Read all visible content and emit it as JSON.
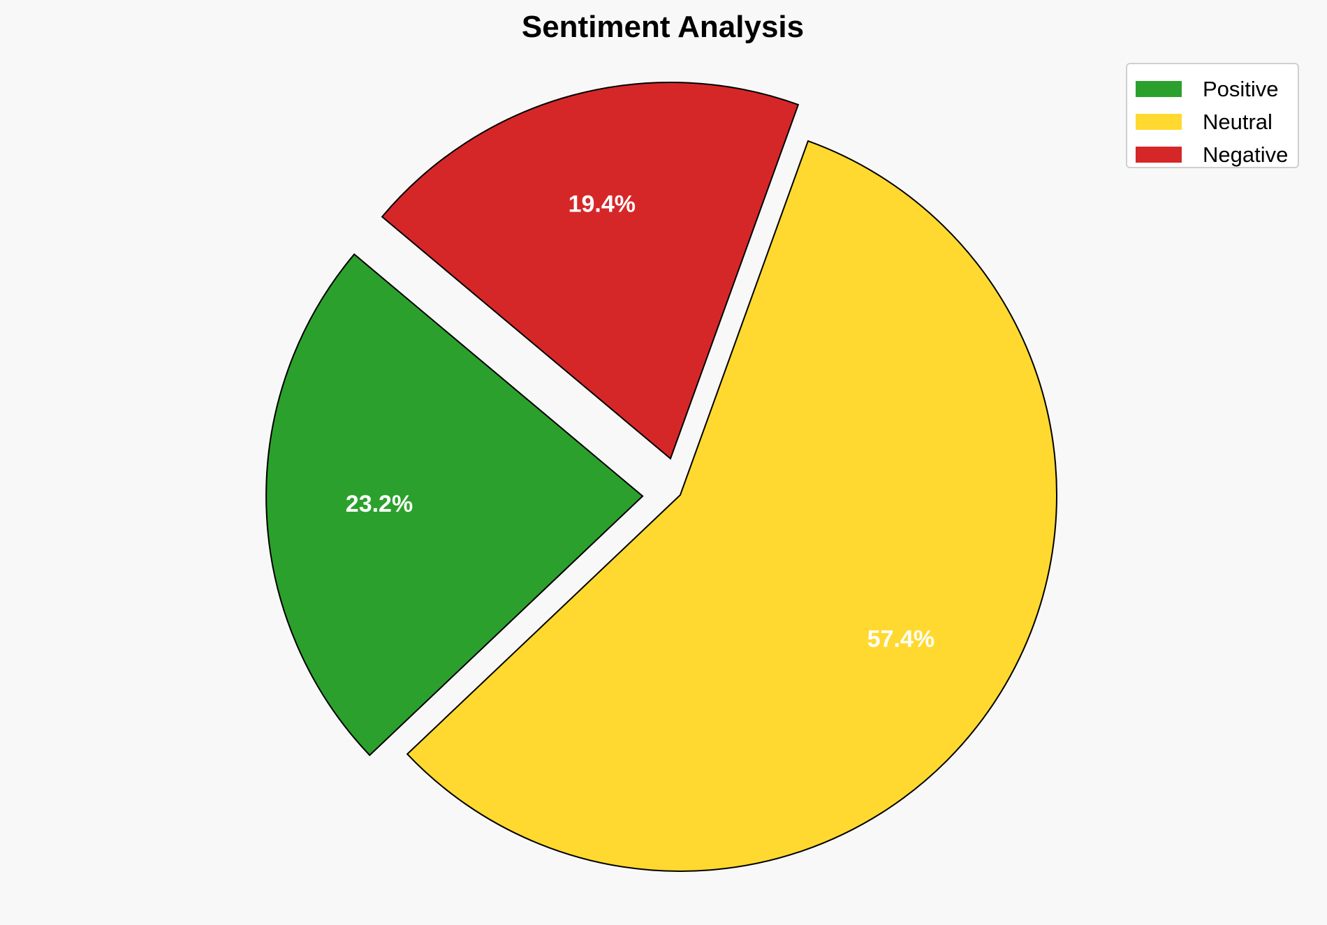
{
  "chart_data": {
    "type": "pie",
    "title": "Sentiment Analysis",
    "labels": [
      "Positive",
      "Neutral",
      "Negative"
    ],
    "values": [
      23.2,
      57.4,
      19.4
    ],
    "value_labels": [
      "23.2%",
      "57.4%",
      "19.4%"
    ],
    "colors": [
      "#2ca02c",
      "#ffd92f",
      "#d62728"
    ],
    "explode": [
      0.1,
      0,
      0.1
    ],
    "start_angle": 140,
    "legend_position": "top-right"
  }
}
